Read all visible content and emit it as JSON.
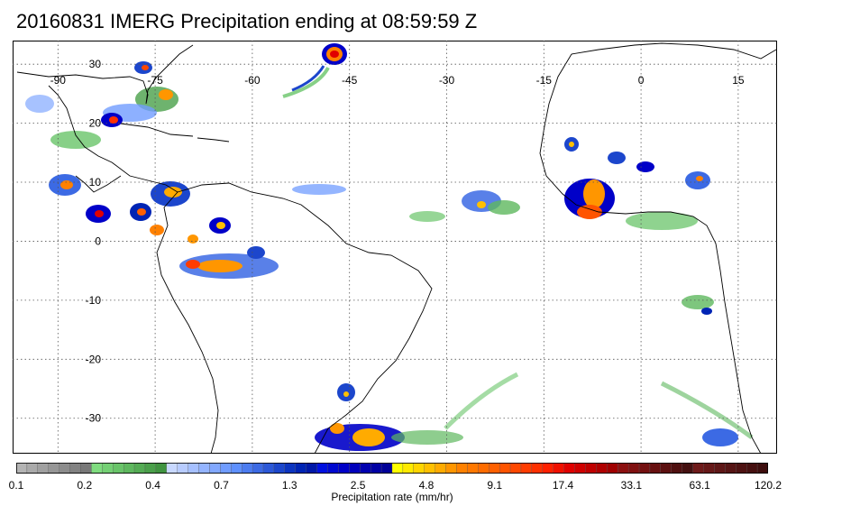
{
  "title": "20160831 IMERG Precipitation ending at 08:59:59 Z",
  "map": {
    "lon_labels": [
      {
        "lon": -90,
        "text": "-90"
      },
      {
        "lon": -75,
        "text": "-75"
      },
      {
        "lon": -60,
        "text": "-60"
      },
      {
        "lon": -45,
        "text": "-45"
      },
      {
        "lon": -30,
        "text": "-30"
      },
      {
        "lon": -15,
        "text": "-15"
      },
      {
        "lon": 0,
        "text": "0"
      },
      {
        "lon": 15,
        "text": "15"
      }
    ],
    "lat_labels": [
      {
        "lat": 30,
        "text": "30"
      },
      {
        "lat": 20,
        "text": "20"
      },
      {
        "lat": 10,
        "text": "10"
      },
      {
        "lat": 0,
        "text": "0"
      },
      {
        "lat": -10,
        "text": "-10"
      },
      {
        "lat": -20,
        "text": "-20"
      },
      {
        "lat": -30,
        "text": "-30"
      }
    ],
    "lon_range": [
      -97,
      21
    ],
    "lat_range": [
      -36,
      34
    ]
  },
  "colorbar": {
    "label": "Precipitation rate (mm/hr)",
    "tick_labels": [
      "0.1",
      "0.2",
      "0.4",
      "0.7",
      "1.3",
      "2.5",
      "4.8",
      "9.1",
      "17.4",
      "33.1",
      "63.1",
      "120.2"
    ],
    "colors": [
      "#b4b4b4",
      "#aaaaaa",
      "#a0a0a0",
      "#969696",
      "#8c8c8c",
      "#828282",
      "#787878",
      "#7fdc7f",
      "#74d074",
      "#69c469",
      "#5eb85e",
      "#54ac54",
      "#4aa04a",
      "#409440",
      "#c8d8ff",
      "#b8ccff",
      "#a6c0ff",
      "#94b4ff",
      "#82a8ff",
      "#709cff",
      "#5e90ff",
      "#4c7cf0",
      "#3c6ae4",
      "#2c58d8",
      "#1c46cc",
      "#0c34c0",
      "#0024b4",
      "#0018a8",
      "#0010e0",
      "#0008d0",
      "#0000c8",
      "#0000bc",
      "#0000b0",
      "#0000a4",
      "#000098",
      "#ffff00",
      "#ffea00",
      "#ffd500",
      "#ffc000",
      "#ffab00",
      "#ff9600",
      "#ff8100",
      "#ff7800",
      "#ff6c00",
      "#ff6000",
      "#ff5400",
      "#ff4800",
      "#ff3c00",
      "#ff3000",
      "#ff2000",
      "#f01000",
      "#e00000",
      "#d00000",
      "#c00000",
      "#b00000",
      "#a00000",
      "#8c1010",
      "#801010",
      "#741010",
      "#681010",
      "#5c1010",
      "#501010",
      "#441010",
      "#6e1a1a",
      "#661818",
      "#5e1616",
      "#561414",
      "#4e1212",
      "#461010",
      "#3e0e0e"
    ]
  }
}
